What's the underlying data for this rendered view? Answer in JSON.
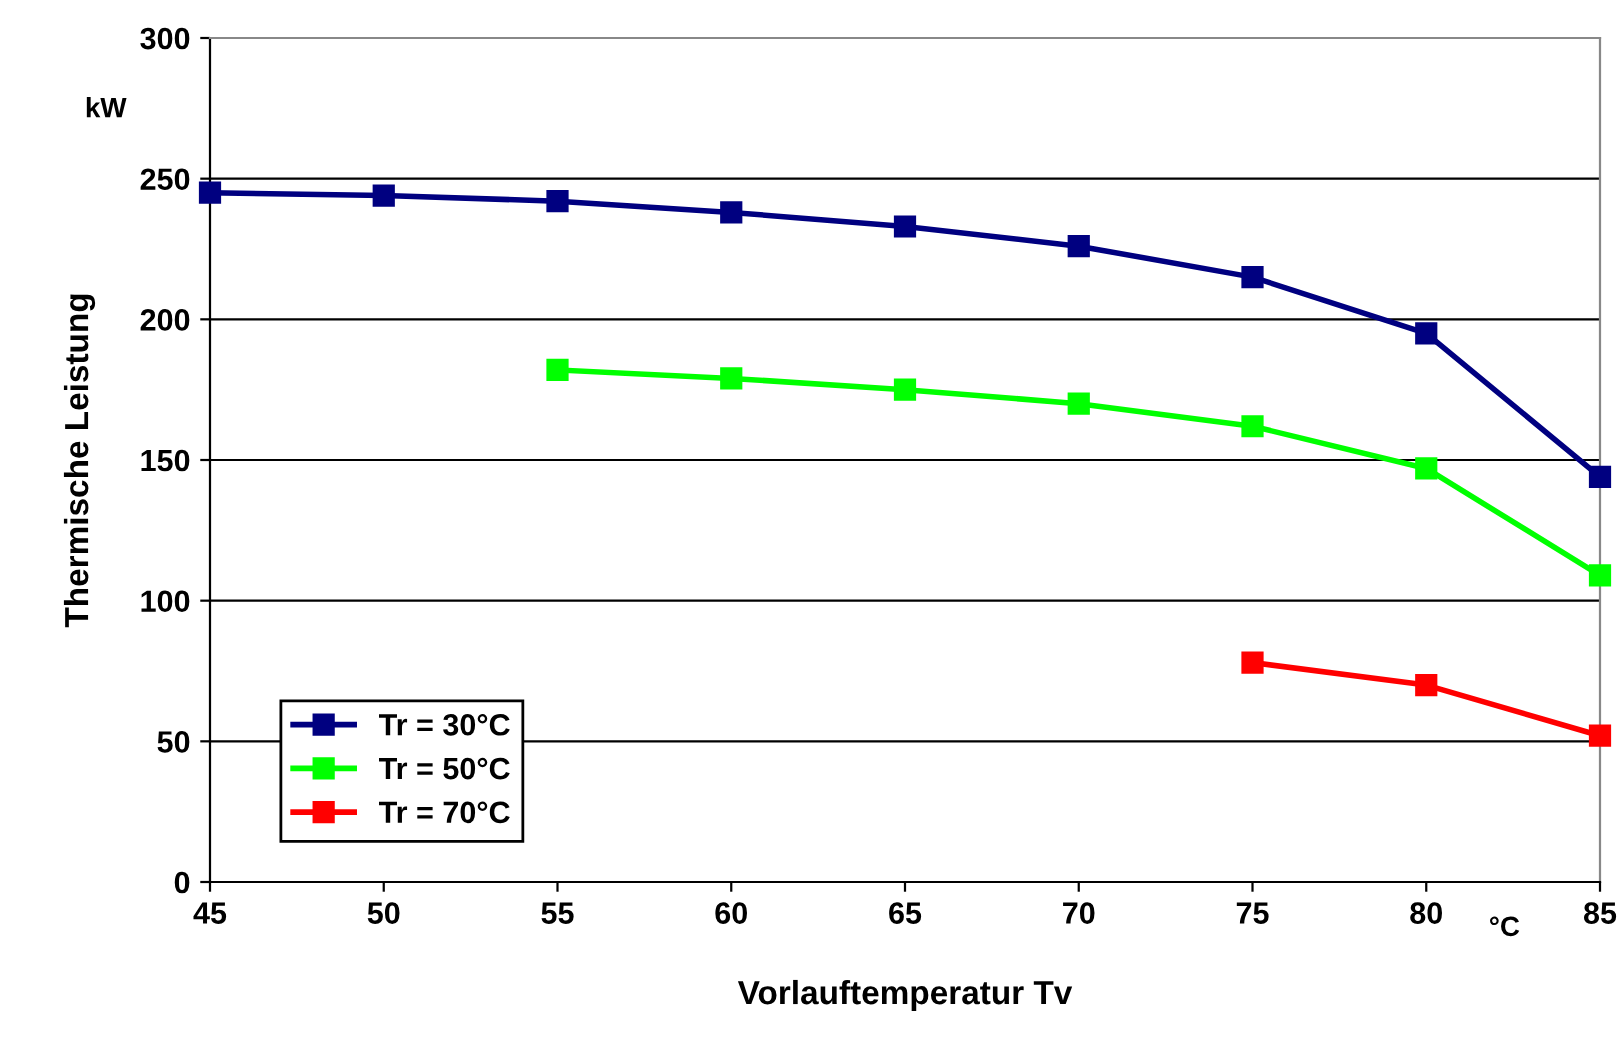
{
  "chart_data": {
    "type": "line",
    "xlabel": "Vorlauftemperatur Tv",
    "ylabel": "Thermische Leistung",
    "annotations": [
      "kW",
      "°C"
    ],
    "x": [
      45,
      50,
      55,
      60,
      65,
      70,
      75,
      80,
      85
    ],
    "series": [
      {
        "name": "Tr = 30°C",
        "color": "#000080",
        "values": [
          245,
          244,
          242,
          238,
          233,
          226,
          215,
          195,
          144
        ]
      },
      {
        "name": "Tr = 50°C",
        "color": "#00ff00",
        "values": [
          null,
          null,
          182,
          179,
          175,
          170,
          162,
          147,
          109
        ]
      },
      {
        "name": "Tr = 70°C",
        "color": "#ff0000",
        "values": [
          null,
          null,
          null,
          null,
          null,
          null,
          78,
          70,
          52
        ]
      }
    ],
    "xlim": [
      45,
      85
    ],
    "xticks": [
      45,
      50,
      55,
      60,
      65,
      70,
      75,
      80,
      85
    ],
    "ylim": [
      0,
      300
    ],
    "yticks": [
      0,
      50,
      100,
      150,
      200,
      250,
      300
    ],
    "grid": "y",
    "legend": "bottom left",
    "marker": "square",
    "line_style": "solid"
  }
}
